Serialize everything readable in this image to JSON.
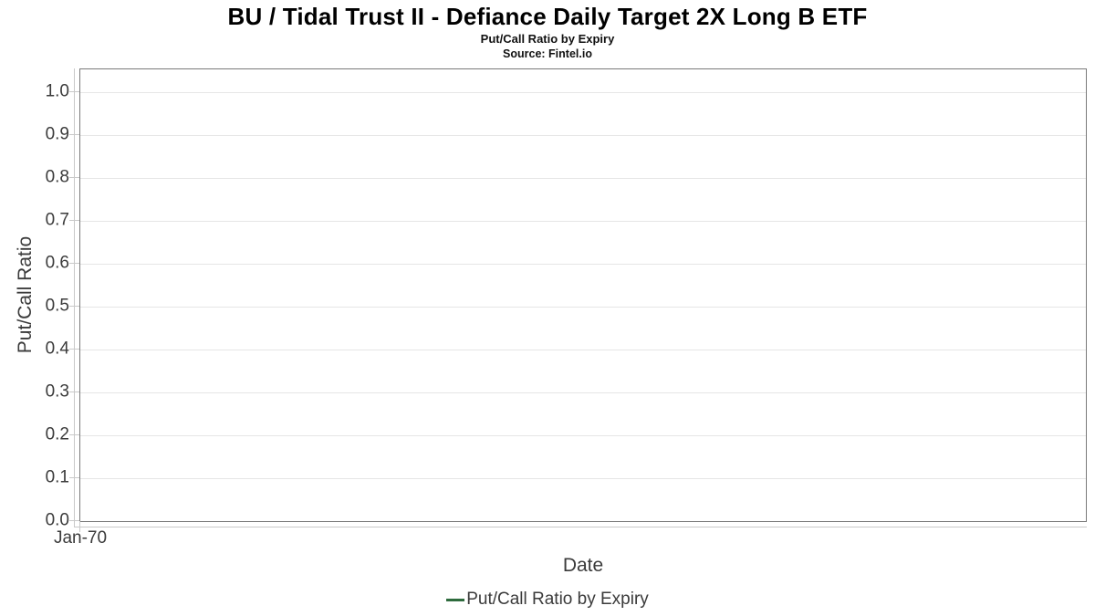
{
  "chart_data": {
    "type": "line",
    "title": "BU / Tidal Trust II - Defiance Daily Target 2X Long B ETF",
    "subtitle": "Put/Call Ratio by Expiry",
    "source": "Source: Fintel.io",
    "xlabel": "Date",
    "ylabel": "Put/Call Ratio",
    "x_ticks": [
      "Jan-70"
    ],
    "y_ticks": [
      0.0,
      0.1,
      0.2,
      0.3,
      0.4,
      0.5,
      0.6,
      0.7,
      0.8,
      0.9,
      1.0
    ],
    "ylim": [
      0.0,
      1.05
    ],
    "grid": true,
    "legend_position": "bottom",
    "series": [
      {
        "name": "Put/Call Ratio by Expiry",
        "color": "#2e6b3d",
        "x": [],
        "values": []
      }
    ]
  },
  "colors": {
    "background": "#ffffff",
    "plot_border": "#7a7a7a",
    "gridline": "#e6e6e6",
    "axis_line": "#c9c9c9",
    "tick_label": "#3b3b3b",
    "title_text": "#000000",
    "legend_line": "#2e6b3d"
  }
}
